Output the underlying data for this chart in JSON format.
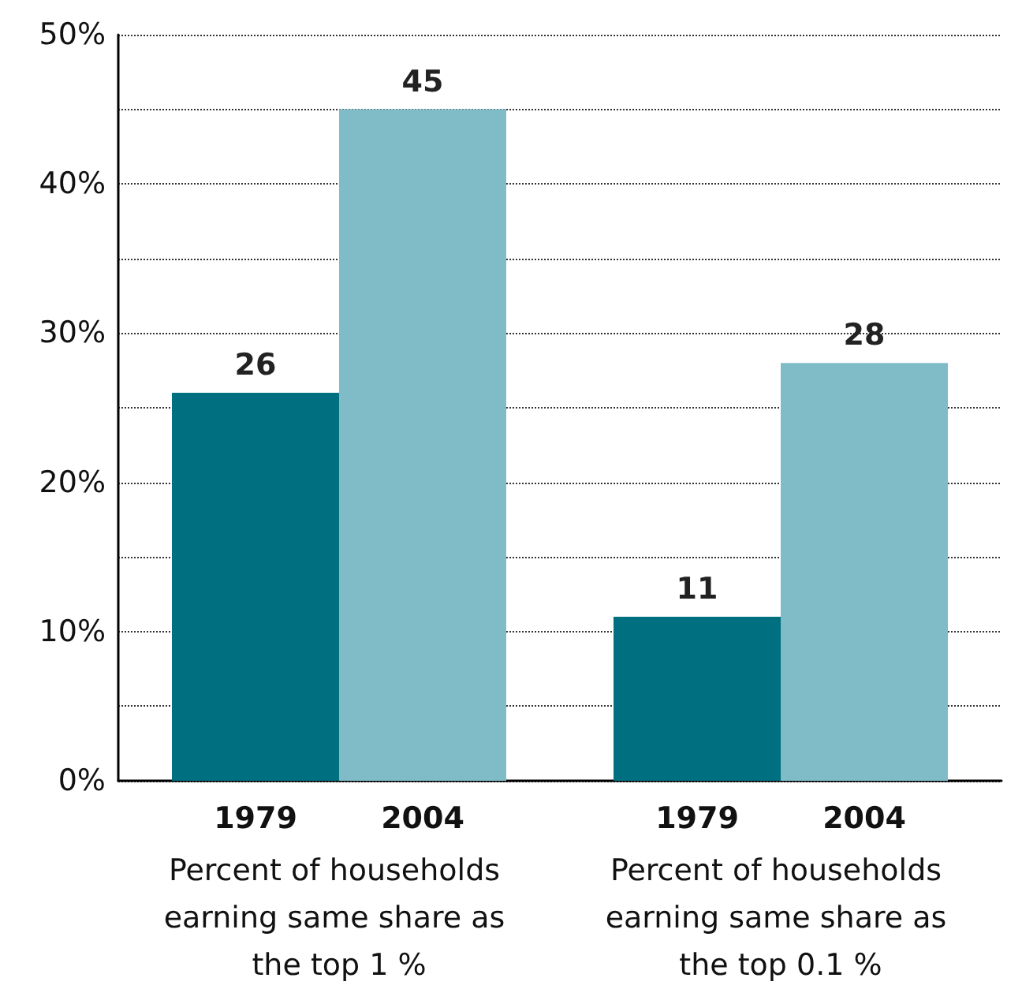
{
  "chart_data": {
    "type": "bar",
    "categories": [
      "Percent of households earning same share as the top 1 %",
      "Percent of households earning same share as the top 0.1 %"
    ],
    "series": [
      {
        "name": "1979",
        "color": "#006f7f",
        "values": [
          26,
          11
        ]
      },
      {
        "name": "2004",
        "color": "#80bcc8",
        "values": [
          45,
          28
        ]
      }
    ],
    "ylim": [
      0,
      50
    ],
    "yticks": [
      {
        "value": 0,
        "label": "0%"
      },
      {
        "value": 5,
        "label": null
      },
      {
        "value": 10,
        "label": "10%"
      },
      {
        "value": 15,
        "label": null
      },
      {
        "value": 20,
        "label": "20%"
      },
      {
        "value": 25,
        "label": null
      },
      {
        "value": 30,
        "label": "30%"
      },
      {
        "value": 35,
        "label": null
      },
      {
        "value": 40,
        "label": "40%"
      },
      {
        "value": 45,
        "label": null
      },
      {
        "value": 50,
        "label": "50%"
      }
    ],
    "grid": "y",
    "data_labels": true,
    "legend": false
  }
}
